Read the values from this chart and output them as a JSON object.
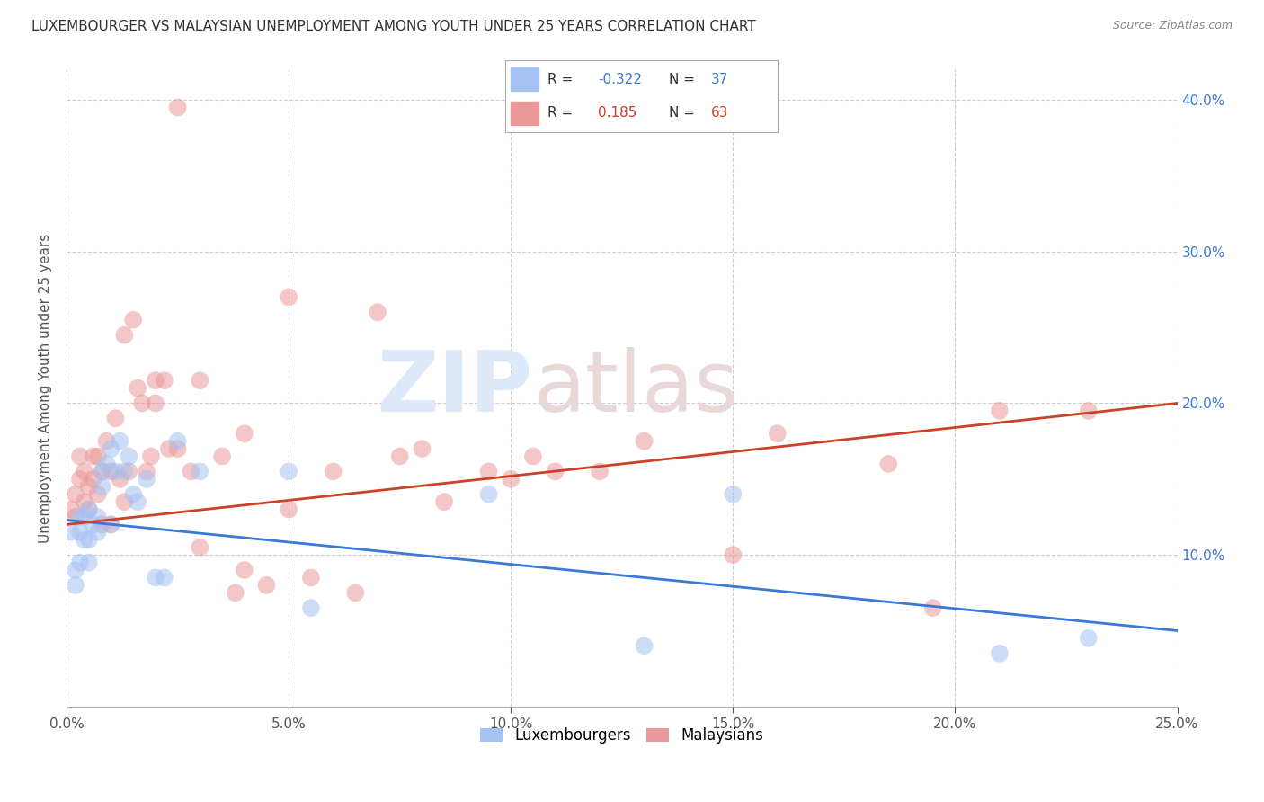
{
  "title": "LUXEMBOURGER VS MALAYSIAN UNEMPLOYMENT AMONG YOUTH UNDER 25 YEARS CORRELATION CHART",
  "source": "Source: ZipAtlas.com",
  "ylabel": "Unemployment Among Youth under 25 years",
  "xlim": [
    0.0,
    0.25
  ],
  "ylim": [
    0.0,
    0.42
  ],
  "xticks": [
    0.0,
    0.05,
    0.1,
    0.15,
    0.2,
    0.25
  ],
  "yticks": [
    0.1,
    0.2,
    0.3,
    0.4
  ],
  "ytick_labels": [
    "10.0%",
    "20.0%",
    "30.0%",
    "40.0%"
  ],
  "xtick_labels": [
    "0.0%",
    "5.0%",
    "10.0%",
    "15.0%",
    "20.0%",
    "25.0%"
  ],
  "lux_color": "#a4c2f4",
  "mal_color": "#ea9999",
  "lux_line_color": "#3c78d8",
  "mal_line_color": "#cc4125",
  "lux_R": -0.322,
  "lux_N": 37,
  "mal_R": 0.185,
  "mal_N": 63,
  "watermark_zip": "ZIP",
  "watermark_atlas": "atlas",
  "lux_x": [
    0.001,
    0.002,
    0.002,
    0.003,
    0.003,
    0.003,
    0.004,
    0.004,
    0.005,
    0.005,
    0.005,
    0.006,
    0.007,
    0.007,
    0.008,
    0.008,
    0.009,
    0.01,
    0.01,
    0.011,
    0.012,
    0.013,
    0.014,
    0.015,
    0.016,
    0.018,
    0.02,
    0.022,
    0.025,
    0.03,
    0.05,
    0.055,
    0.095,
    0.13,
    0.15,
    0.21,
    0.23
  ],
  "lux_y": [
    0.115,
    0.09,
    0.08,
    0.095,
    0.115,
    0.125,
    0.11,
    0.125,
    0.095,
    0.11,
    0.13,
    0.12,
    0.115,
    0.125,
    0.145,
    0.155,
    0.16,
    0.17,
    0.12,
    0.155,
    0.175,
    0.155,
    0.165,
    0.14,
    0.135,
    0.15,
    0.085,
    0.085,
    0.175,
    0.155,
    0.155,
    0.065,
    0.14,
    0.04,
    0.14,
    0.035,
    0.045
  ],
  "mal_x": [
    0.001,
    0.002,
    0.002,
    0.003,
    0.003,
    0.004,
    0.004,
    0.005,
    0.005,
    0.006,
    0.006,
    0.007,
    0.007,
    0.008,
    0.008,
    0.009,
    0.01,
    0.01,
    0.011,
    0.012,
    0.013,
    0.013,
    0.014,
    0.015,
    0.016,
    0.017,
    0.018,
    0.019,
    0.02,
    0.02,
    0.022,
    0.023,
    0.025,
    0.025,
    0.028,
    0.03,
    0.03,
    0.035,
    0.038,
    0.04,
    0.04,
    0.045,
    0.05,
    0.05,
    0.055,
    0.06,
    0.065,
    0.07,
    0.075,
    0.08,
    0.085,
    0.095,
    0.1,
    0.105,
    0.11,
    0.12,
    0.13,
    0.15,
    0.16,
    0.185,
    0.195,
    0.21,
    0.23
  ],
  "mal_y": [
    0.13,
    0.14,
    0.125,
    0.15,
    0.165,
    0.135,
    0.155,
    0.13,
    0.145,
    0.15,
    0.165,
    0.14,
    0.165,
    0.12,
    0.155,
    0.175,
    0.12,
    0.155,
    0.19,
    0.15,
    0.135,
    0.245,
    0.155,
    0.255,
    0.21,
    0.2,
    0.155,
    0.165,
    0.2,
    0.215,
    0.215,
    0.17,
    0.17,
    0.395,
    0.155,
    0.105,
    0.215,
    0.165,
    0.075,
    0.09,
    0.18,
    0.08,
    0.13,
    0.27,
    0.085,
    0.155,
    0.075,
    0.26,
    0.165,
    0.17,
    0.135,
    0.155,
    0.15,
    0.165,
    0.155,
    0.155,
    0.175,
    0.1,
    0.18,
    0.16,
    0.065,
    0.195,
    0.195
  ],
  "lux_line_x0": 0.0,
  "lux_line_y0": 0.123,
  "lux_line_x1": 0.25,
  "lux_line_y1": 0.05,
  "mal_line_x0": 0.0,
  "mal_line_y0": 0.12,
  "mal_line_x1": 0.25,
  "mal_line_y1": 0.2
}
